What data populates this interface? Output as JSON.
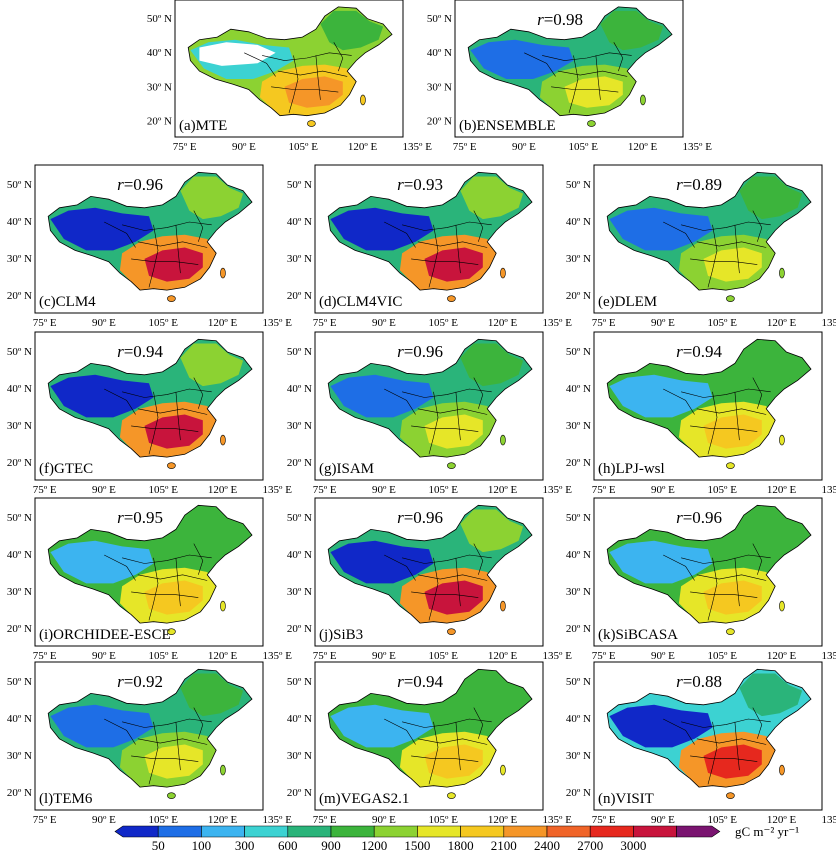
{
  "figure": {
    "lat_ticks": [
      "20º N",
      "30º N",
      "40º N",
      "50º N"
    ],
    "lon_ticks": [
      "75º E",
      "90º E",
      "105º E",
      "120º E",
      "135º E"
    ],
    "panels": [
      {
        "label": "(a)MTE",
        "r": "",
        "style": "mte"
      },
      {
        "label": "(b)ENSEMBLE",
        "r": "0.98",
        "style": "cool"
      },
      {
        "label": "(c)CLM4",
        "r": "0.96",
        "style": "hot"
      },
      {
        "label": "(d)CLM4VIC",
        "r": "0.93",
        "style": "hot"
      },
      {
        "label": "(e)DLEM",
        "r": "0.89",
        "style": "cool"
      },
      {
        "label": "(f)GTEC",
        "r": "0.94",
        "style": "hot"
      },
      {
        "label": "(g)ISAM",
        "r": "0.96",
        "style": "cool"
      },
      {
        "label": "(h)LPJ-wsl",
        "r": "0.94",
        "style": "warm"
      },
      {
        "label": "(i)ORCHIDEE-ESCE",
        "r": "0.95",
        "style": "warm"
      },
      {
        "label": "(j)SiB3",
        "r": "0.96",
        "style": "hot"
      },
      {
        "label": "(k)SiBCASA",
        "r": "0.96",
        "style": "warm"
      },
      {
        "label": "(l)TEM6",
        "r": "0.92",
        "style": "cool"
      },
      {
        "label": "(m)VEGAS2.1",
        "r": "0.94",
        "style": "warm"
      },
      {
        "label": "(n)VISIT",
        "r": "0.88",
        "style": "visit"
      }
    ],
    "r_symbol": "r",
    "colorbar": {
      "levels": [
        "50",
        "100",
        "300",
        "600",
        "900",
        "1200",
        "1500",
        "1800",
        "2100",
        "2400",
        "2700",
        "3000"
      ],
      "colors": [
        "#1028c8",
        "#1e6ee6",
        "#3cb4f0",
        "#3cd2d2",
        "#2ab47a",
        "#3cb43c",
        "#8cd232",
        "#e6e628",
        "#f5c820",
        "#f59628",
        "#f06428",
        "#e6281e",
        "#c8143c",
        "#7a1470"
      ],
      "unit": "gC m⁻² yr⁻¹"
    }
  }
}
